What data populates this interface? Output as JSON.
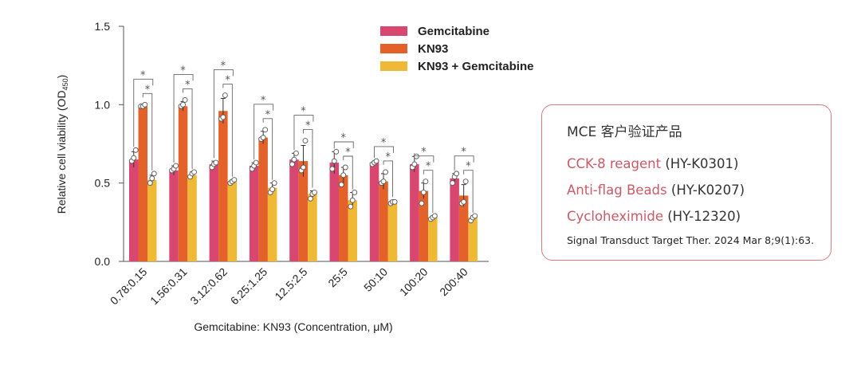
{
  "chart_data": {
    "type": "bar",
    "title": "",
    "xlabel": "Gemcitabine: KN93 (Concentration, μM)",
    "ylabel": "Relative cell viability (OD",
    "ylabel_sub": "450",
    "ylabel_close": ")",
    "ylim": [
      0,
      1.5
    ],
    "yticks": [
      "0.0",
      "0.5",
      "1.0",
      "1.5"
    ],
    "categories": [
      "0.78:0.15",
      "1.56:0.31",
      "3.12:0.62",
      "6.25:1.25",
      "12.5:2.5",
      "25:5",
      "50:10",
      "100:20",
      "200:40"
    ],
    "series": [
      {
        "name": "Gemcitabine",
        "color": "#d94771",
        "values": [
          0.65,
          0.58,
          0.62,
          0.61,
          0.65,
          0.63,
          0.63,
          0.62,
          0.53
        ],
        "errors": [
          0.05,
          0.03,
          0.02,
          0.02,
          0.04,
          0.07,
          0.01,
          0.05,
          0.03
        ],
        "points": [
          [
            0.64,
            0.66,
            0.71
          ],
          [
            0.58,
            0.59,
            0.61
          ],
          [
            0.6,
            0.62,
            0.63
          ],
          [
            0.59,
            0.61,
            0.63
          ],
          [
            0.62,
            0.65,
            0.69
          ],
          [
            0.59,
            0.64,
            0.7
          ],
          [
            0.62,
            0.63,
            0.64
          ],
          [
            0.6,
            0.62,
            0.67
          ],
          [
            0.5,
            0.54,
            0.56
          ]
        ]
      },
      {
        "name": "KN93",
        "color": "#e5612a",
        "values": [
          0.99,
          0.99,
          0.96,
          0.79,
          0.64,
          0.55,
          0.51,
          0.45,
          0.42
        ],
        "errors": [
          0.01,
          0.03,
          0.08,
          0.04,
          0.1,
          0.05,
          0.05,
          0.05,
          0.07
        ],
        "points": [
          [
            0.99,
            0.99,
            1.0
          ],
          [
            0.99,
            1.0,
            1.03
          ],
          [
            0.91,
            0.92,
            1.06
          ],
          [
            0.78,
            0.79,
            0.84
          ],
          [
            0.58,
            0.6,
            0.77
          ],
          [
            0.49,
            0.55,
            0.6
          ],
          [
            0.5,
            0.51,
            0.57
          ],
          [
            0.37,
            0.44,
            0.51
          ],
          [
            0.37,
            0.38,
            0.51
          ]
        ]
      },
      {
        "name": "KN93 + Gemcitabine",
        "color": "#efb935",
        "values": [
          0.52,
          0.55,
          0.51,
          0.47,
          0.43,
          0.39,
          0.38,
          0.28,
          0.28
        ],
        "errors": [
          0.03,
          0.02,
          0.01,
          0.03,
          0.02,
          0.05,
          0.01,
          0.01,
          0.01
        ],
        "points": [
          [
            0.5,
            0.53,
            0.56
          ],
          [
            0.54,
            0.56,
            0.57
          ],
          [
            0.5,
            0.51,
            0.52
          ],
          [
            0.44,
            0.46,
            0.5
          ],
          [
            0.4,
            0.43,
            0.44
          ],
          [
            0.35,
            0.39,
            0.44
          ],
          [
            0.37,
            0.38,
            0.38
          ],
          [
            0.27,
            0.28,
            0.29
          ],
          [
            0.26,
            0.28,
            0.29
          ]
        ]
      }
    ],
    "significance_label": "*",
    "legend_position": "top-center"
  },
  "info": {
    "title": "MCE 客户验证产品",
    "products": [
      {
        "name": "CCK-8 reagent",
        "code": "(HY-K0301)"
      },
      {
        "name": "Anti-flag Beads",
        "code": "(HY-K0207)"
      },
      {
        "name": "Cycloheximide",
        "code": "(HY-12320)"
      }
    ],
    "citation": "Signal Transduct Target Ther. 2024 Mar 8;9(1):63."
  },
  "colors": {
    "accent": "#c95a66",
    "box_border": "#d97b80"
  }
}
